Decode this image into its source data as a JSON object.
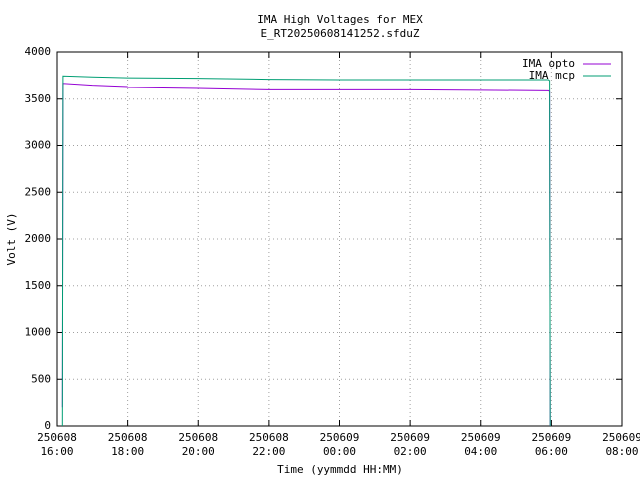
{
  "chart_data": {
    "type": "line",
    "title": "IMA High Voltages for MEX",
    "subtitle": "E_RT20250608141252.sfduZ",
    "x_label": "Time (yymmdd HH:MM)",
    "y_label": "Volt (V)",
    "x": [
      "250608 16:09",
      "250608 16:10",
      "250608 17:00",
      "250608 18:00",
      "250608 20:00",
      "250608 22:00",
      "250609 00:00",
      "250609 02:00",
      "250609 04:00",
      "250609 05:55",
      "250609 05:57",
      "250609 05:58"
    ],
    "series": [
      {
        "name": "IMA opto",
        "color": "#9400d3",
        "values": [
          200,
          3660,
          3640,
          3625,
          3615,
          3600,
          3600,
          3600,
          3595,
          3590,
          3580,
          0
        ]
      },
      {
        "name": "IMA mcp",
        "color": "#009e73",
        "values": [
          0,
          3740,
          3730,
          3720,
          3715,
          3705,
          3700,
          3700,
          3700,
          3700,
          3690,
          0
        ]
      }
    ],
    "xlim": [
      "250608 16:00",
      "250609 08:00"
    ],
    "xticks": [
      "250608 16:00",
      "250608 18:00",
      "250608 20:00",
      "250608 22:00",
      "250609 00:00",
      "250609 02:00",
      "250609 04:00",
      "250609 06:00",
      "250609 08:00"
    ],
    "ylim": [
      0,
      4000
    ],
    "yticks": [
      0,
      500,
      1000,
      1500,
      2000,
      2500,
      3000,
      3500,
      4000
    ],
    "grid": true,
    "legend": "top-right"
  }
}
